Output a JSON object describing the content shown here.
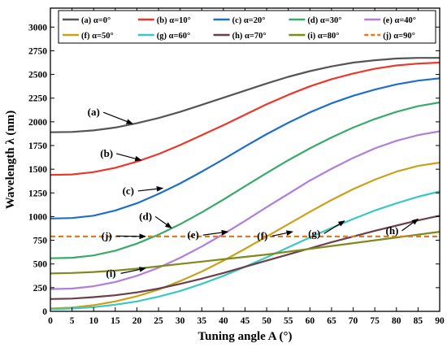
{
  "chart_data": {
    "type": "line",
    "xlabel": "Tuning angle A  (°)",
    "ylabel": "Wavelength λ (nm)",
    "xlim": [
      0,
      90
    ],
    "ylim": [
      0,
      3200
    ],
    "xticks": [
      0,
      5,
      10,
      15,
      20,
      25,
      30,
      35,
      40,
      45,
      50,
      55,
      60,
      65,
      70,
      75,
      80,
      85,
      90
    ],
    "yticks": [
      0,
      250,
      500,
      750,
      1000,
      1250,
      1500,
      1750,
      2000,
      2250,
      2500,
      2750,
      3000
    ],
    "grid": false,
    "legend_position": "top",
    "x": [
      0,
      5,
      10,
      15,
      20,
      25,
      30,
      35,
      40,
      45,
      50,
      55,
      60,
      65,
      70,
      75,
      80,
      85,
      90
    ],
    "series": [
      {
        "name": "(a) α=0°",
        "color": "#555555",
        "dashed": false,
        "values": [
          1890,
          1893,
          1910,
          1940,
          1985,
          2040,
          2105,
          2180,
          2255,
          2330,
          2405,
          2475,
          2535,
          2585,
          2625,
          2650,
          2668,
          2675,
          2675
        ]
      },
      {
        "name": "(b) α=10°",
        "color": "#e8392c",
        "dashed": false,
        "values": [
          1440,
          1445,
          1470,
          1515,
          1580,
          1660,
          1755,
          1860,
          1965,
          2075,
          2185,
          2285,
          2375,
          2450,
          2510,
          2560,
          2595,
          2615,
          2625
        ]
      },
      {
        "name": "(c) α=20°",
        "color": "#1f6fc5",
        "dashed": false,
        "values": [
          980,
          985,
          1010,
          1065,
          1140,
          1240,
          1350,
          1475,
          1605,
          1740,
          1870,
          1990,
          2100,
          2195,
          2275,
          2340,
          2395,
          2435,
          2460
        ]
      },
      {
        "name": "(d) α=30°",
        "color": "#3aaa6a",
        "dashed": false,
        "values": [
          560,
          565,
          590,
          640,
          715,
          810,
          920,
          1045,
          1180,
          1320,
          1460,
          1595,
          1720,
          1835,
          1940,
          2030,
          2105,
          2165,
          2205
        ]
      },
      {
        "name": "(e) α=40°",
        "color": "#b07fdc",
        "dashed": false,
        "values": [
          235,
          240,
          265,
          310,
          375,
          460,
          565,
          685,
          815,
          955,
          1100,
          1240,
          1380,
          1505,
          1620,
          1720,
          1800,
          1860,
          1900
        ]
      },
      {
        "name": "(f) α=50°",
        "color": "#c9a21a",
        "dashed": false,
        "values": [
          30,
          40,
          65,
          105,
          160,
          230,
          320,
          420,
          535,
          660,
          790,
          920,
          1050,
          1175,
          1290,
          1390,
          1475,
          1535,
          1570
        ]
      },
      {
        "name": "(g) α=60°",
        "color": "#3cc7c2",
        "dashed": false,
        "values": [
          25,
          30,
          45,
          70,
          105,
          155,
          215,
          290,
          375,
          470,
          570,
          675,
          780,
          880,
          975,
          1065,
          1140,
          1210,
          1265
        ]
      },
      {
        "name": "(h) α=70°",
        "color": "#6b3f4a",
        "dashed": false,
        "values": [
          130,
          135,
          150,
          170,
          200,
          240,
          290,
          345,
          405,
          470,
          535,
          600,
          665,
          730,
          790,
          850,
          905,
          960,
          1010
        ]
      },
      {
        "name": "(i) α=80°",
        "color": "#7f8a1e",
        "dashed": false,
        "values": [
          400,
          405,
          415,
          430,
          450,
          475,
          500,
          525,
          550,
          575,
          600,
          630,
          660,
          690,
          720,
          750,
          780,
          810,
          840
        ]
      },
      {
        "name": "(j) α=90°",
        "color": "#e07b1f",
        "dashed": true,
        "values": [
          790,
          790,
          790,
          790,
          790,
          790,
          790,
          790,
          790,
          790,
          790,
          790,
          790,
          790,
          790,
          790,
          790,
          790,
          790
        ]
      }
    ],
    "annotations": [
      {
        "label": "(a)",
        "text_x": 10,
        "text_y": 2100,
        "point_x": 19,
        "point_y": 1980
      },
      {
        "label": "(b)",
        "text_x": 13,
        "text_y": 1665,
        "point_x": 21,
        "point_y": 1595
      },
      {
        "name": "c",
        "label": "(c)",
        "text_x": 18,
        "text_y": 1270,
        "point_x": 26,
        "point_y": 1300
      },
      {
        "label": "(d)",
        "text_x": 22,
        "text_y": 1000,
        "point_x": 28,
        "point_y": 880
      },
      {
        "label": "(e)",
        "text_x": 33,
        "text_y": 805,
        "point_x": 41,
        "point_y": 840
      },
      {
        "label": "(f)",
        "text_x": 49,
        "text_y": 795,
        "point_x": 56,
        "point_y": 840
      },
      {
        "label": "(g)",
        "text_x": 61,
        "text_y": 820,
        "point_x": 68,
        "point_y": 955
      },
      {
        "label": "(h)",
        "text_x": 79,
        "text_y": 850,
        "point_x": 85,
        "point_y": 975
      },
      {
        "label": "(j)",
        "text_x": 13,
        "text_y": 795,
        "point_x": 22,
        "point_y": 790
      },
      {
        "label": "(i)",
        "text_x": 14,
        "text_y": 400,
        "point_x": 22,
        "point_y": 455
      }
    ]
  }
}
